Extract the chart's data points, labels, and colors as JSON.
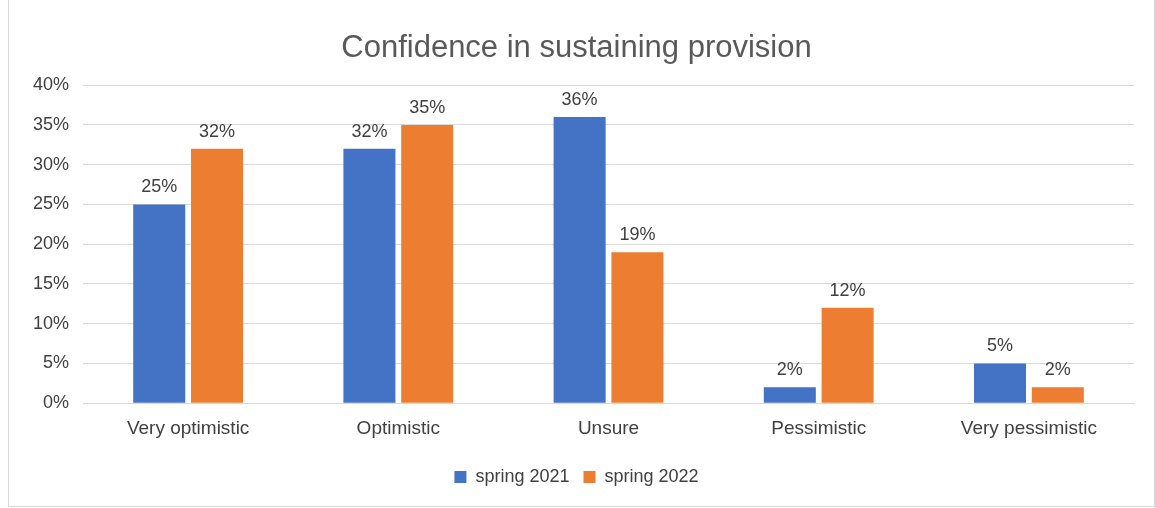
{
  "chart_data": {
    "type": "bar",
    "title": "Confidence in sustaining provision",
    "categories": [
      "Very optimistic",
      "Optimistic",
      "Unsure",
      "Pessimistic",
      "Very pessimistic"
    ],
    "series": [
      {
        "name": "spring 2021",
        "color": "#4472c4",
        "values": [
          25,
          32,
          36,
          2,
          5
        ],
        "value_labels": [
          "25%",
          "32%",
          "36%",
          "2%",
          "5%"
        ]
      },
      {
        "name": "spring 2022",
        "color": "#ed7d31",
        "values": [
          32,
          35,
          19,
          12,
          2
        ],
        "value_labels": [
          "32%",
          "35%",
          "19%",
          "12%",
          "2%"
        ]
      }
    ],
    "ylim": [
      0,
      40
    ],
    "yticks": [
      {
        "value": 0,
        "label": "0%"
      },
      {
        "value": 5,
        "label": "5%"
      },
      {
        "value": 10,
        "label": "10%"
      },
      {
        "value": 15,
        "label": "15%"
      },
      {
        "value": 20,
        "label": "20%"
      },
      {
        "value": 25,
        "label": "25%"
      },
      {
        "value": 30,
        "label": "30%"
      },
      {
        "value": 35,
        "label": "35%"
      },
      {
        "value": 40,
        "label": "40%"
      }
    ],
    "grid": "y",
    "legend": "bottom"
  }
}
